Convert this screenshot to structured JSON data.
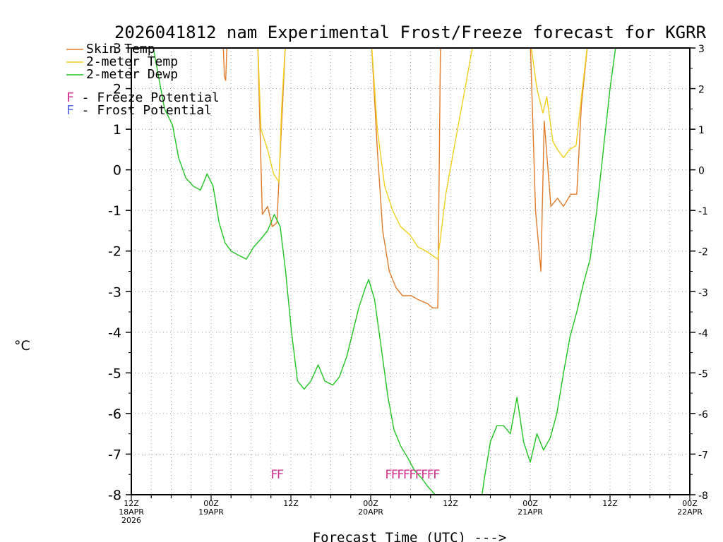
{
  "chart_data": {
    "type": "line",
    "title": "2026041812 nam Experimental Frost/Freeze forecast for KGRR",
    "ylabel": "°C",
    "xlabel": "Forecast Time (UTC) --->",
    "ylim": [
      -8,
      3
    ],
    "xlim": [
      0,
      84
    ],
    "y_ticks": [
      3,
      2,
      1,
      0,
      -1,
      -2,
      -3,
      -4,
      -5,
      -6,
      -7,
      -8
    ],
    "x_ticks": [
      {
        "hour": 0,
        "label": "12Z",
        "sub": "18APR",
        "sub2": "2026"
      },
      {
        "hour": 12,
        "label": "00Z",
        "sub": "19APR"
      },
      {
        "hour": 24,
        "label": "12Z"
      },
      {
        "hour": 36,
        "label": "00Z",
        "sub": "20APR"
      },
      {
        "hour": 48,
        "label": "12Z"
      },
      {
        "hour": 60,
        "label": "00Z",
        "sub": "21APR"
      },
      {
        "hour": 72,
        "label": "12Z"
      },
      {
        "hour": 84,
        "label": "00Z",
        "sub": "22APR"
      }
    ],
    "grid": true,
    "series": [
      {
        "name": "Skin Temp",
        "color": "#e07c2c",
        "points": [
          [
            13.8,
            3.2
          ],
          [
            14,
            2.3
          ],
          [
            14.2,
            2.2
          ],
          [
            14.4,
            3.2
          ],
          [
            19,
            3.2
          ],
          [
            19.7,
            -1.1
          ],
          [
            20.5,
            -0.9
          ],
          [
            21.2,
            -1.4
          ],
          [
            21.9,
            -1.3
          ],
          [
            22.4,
            0.4
          ],
          [
            23.2,
            3.2
          ],
          [
            36.1,
            3.2
          ],
          [
            37.0,
            0.5
          ],
          [
            37.8,
            -1.5
          ],
          [
            38.8,
            -2.5
          ],
          [
            39.8,
            -2.9
          ],
          [
            40.8,
            -3.1
          ],
          [
            42.1,
            -3.1
          ],
          [
            43.2,
            -3.2
          ],
          [
            44.6,
            -3.3
          ],
          [
            45.3,
            -3.4
          ],
          [
            46.1,
            -3.4
          ],
          [
            46.5,
            3.2
          ],
          [
            60.0,
            3.2
          ],
          [
            60.8,
            -1.0
          ],
          [
            61.6,
            -2.5
          ],
          [
            62.1,
            1.2
          ],
          [
            63.1,
            -0.9
          ],
          [
            64.1,
            -0.7
          ],
          [
            65.0,
            -0.9
          ],
          [
            66.1,
            -0.6
          ],
          [
            67.0,
            -0.6
          ],
          [
            67.7,
            1.6
          ],
          [
            68.7,
            3.2
          ]
        ]
      },
      {
        "name": "2-meter Temp",
        "color": "#f0d020",
        "points": [
          [
            19,
            3.2
          ],
          [
            19.5,
            1.0
          ],
          [
            20.5,
            0.5
          ],
          [
            21.4,
            -0.1
          ],
          [
            22.2,
            -0.3
          ],
          [
            22.6,
            1.5
          ],
          [
            23.2,
            3.2
          ],
          [
            36.1,
            3.2
          ],
          [
            37.0,
            1.0
          ],
          [
            38.1,
            -0.4
          ],
          [
            39.3,
            -1.0
          ],
          [
            40.5,
            -1.4
          ],
          [
            41.9,
            -1.6
          ],
          [
            43.1,
            -1.9
          ],
          [
            44.3,
            -2.0
          ],
          [
            45.2,
            -2.1
          ],
          [
            46.1,
            -2.2
          ],
          [
            47.3,
            -0.6
          ],
          [
            48.5,
            0.5
          ],
          [
            50.2,
            2.0
          ],
          [
            51.5,
            3.2
          ],
          [
            60.0,
            3.2
          ],
          [
            61.0,
            2.0
          ],
          [
            61.9,
            1.4
          ],
          [
            62.5,
            1.8
          ],
          [
            63.4,
            0.7
          ],
          [
            64.1,
            0.5
          ],
          [
            65.0,
            0.3
          ],
          [
            65.9,
            0.5
          ],
          [
            66.9,
            0.6
          ],
          [
            67.7,
            1.8
          ],
          [
            68.7,
            3.2
          ]
        ]
      },
      {
        "name": "2-meter Dewp",
        "color": "#22c422",
        "points": [
          [
            0,
            3.4
          ],
          [
            3.2,
            3.1
          ],
          [
            4.2,
            2.2
          ],
          [
            5.0,
            1.5
          ],
          [
            6.2,
            1.1
          ],
          [
            7.1,
            0.3
          ],
          [
            8.2,
            -0.2
          ],
          [
            9.3,
            -0.4
          ],
          [
            10.4,
            -0.5
          ],
          [
            11.4,
            -0.1
          ],
          [
            12.3,
            -0.4
          ],
          [
            13.2,
            -1.3
          ],
          [
            14.1,
            -1.8
          ],
          [
            15.0,
            -2.0
          ],
          [
            16.1,
            -2.1
          ],
          [
            17.3,
            -2.2
          ],
          [
            18.4,
            -1.9
          ],
          [
            19.5,
            -1.7
          ],
          [
            20.5,
            -1.5
          ],
          [
            21.5,
            -1.1
          ],
          [
            22.4,
            -1.4
          ],
          [
            23.2,
            -2.5
          ],
          [
            24.1,
            -4.0
          ],
          [
            25.0,
            -5.2
          ],
          [
            26.0,
            -5.4
          ],
          [
            27.0,
            -5.2
          ],
          [
            28.1,
            -4.8
          ],
          [
            29.1,
            -5.2
          ],
          [
            30.3,
            -5.3
          ],
          [
            31.3,
            -5.1
          ],
          [
            32.4,
            -4.6
          ],
          [
            33.3,
            -4.0
          ],
          [
            34.2,
            -3.4
          ],
          [
            35.2,
            -2.9
          ],
          [
            35.7,
            -2.7
          ],
          [
            36.6,
            -3.2
          ],
          [
            37.6,
            -4.4
          ],
          [
            38.6,
            -5.6
          ],
          [
            39.5,
            -6.4
          ],
          [
            40.5,
            -6.8
          ],
          [
            41.6,
            -7.1
          ],
          [
            42.6,
            -7.4
          ],
          [
            43.7,
            -7.6
          ],
          [
            44.6,
            -7.8
          ],
          [
            45.7,
            -8.0
          ],
          [
            46.5,
            -8.3
          ],
          [
            48.0,
            -8.3
          ],
          [
            52.5,
            -8.3
          ],
          [
            53.1,
            -7.6
          ],
          [
            54.0,
            -6.7
          ],
          [
            55.0,
            -6.3
          ],
          [
            56.0,
            -6.3
          ],
          [
            57.0,
            -6.5
          ],
          [
            58.0,
            -5.6
          ],
          [
            59.0,
            -6.7
          ],
          [
            60.0,
            -7.2
          ],
          [
            61.0,
            -6.5
          ],
          [
            62.0,
            -6.9
          ],
          [
            63.0,
            -6.6
          ],
          [
            64.0,
            -6.0
          ],
          [
            65.0,
            -5.0
          ],
          [
            66.0,
            -4.1
          ],
          [
            67.0,
            -3.5
          ],
          [
            68.0,
            -2.8
          ],
          [
            69.0,
            -2.2
          ],
          [
            70.0,
            -1.0
          ],
          [
            71.0,
            0.5
          ],
          [
            72.0,
            2.0
          ],
          [
            73.0,
            3.2
          ]
        ]
      }
    ],
    "legend": [
      {
        "label": "Skin Temp",
        "color": "#e07c2c"
      },
      {
        "label": "2-meter Temp",
        "color": "#f0d020"
      },
      {
        "label": "2-meter Dewp",
        "color": "#22c422"
      }
    ],
    "legend_potential": [
      {
        "letter": "F",
        "text": " - Freeze Potential",
        "color": "#d0308a"
      },
      {
        "letter": "F",
        "text": " - Frost Potential",
        "color": "#5a6ae0"
      }
    ],
    "freeze_markers": {
      "color": "#d0308a",
      "letter": "F",
      "hours": [
        21.5,
        22.4,
        38.7,
        39.6,
        40.5,
        41.4,
        42.3,
        43.2,
        44.1,
        45.0,
        45.9
      ],
      "at_value": -7.5
    }
  }
}
